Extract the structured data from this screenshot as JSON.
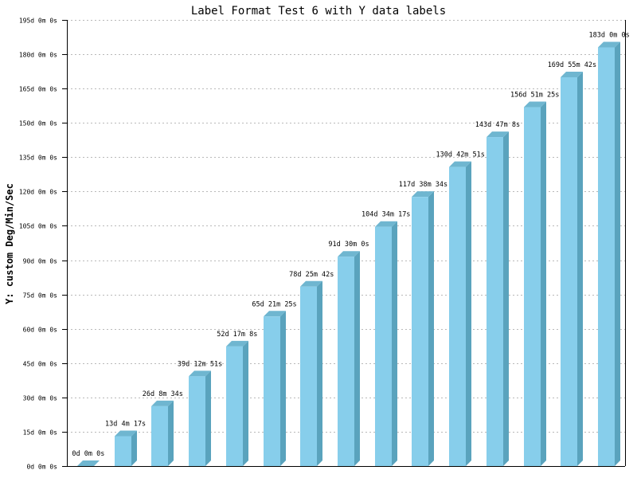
{
  "colors": {
    "bar_front": "#87ceeb",
    "bar_side": "#5aa3bd",
    "bar_top": "#6fb6d0",
    "grid": "#b9b9b9",
    "axis": "#000000"
  },
  "chart_data": {
    "type": "bar",
    "title": "Label Format Test 6 with Y data labels",
    "xlabel": "",
    "ylabel": "Y: custom Deg/Min/Sec",
    "ylim": [
      0,
      195
    ],
    "ytick_values": [
      0,
      15,
      30,
      45,
      60,
      75,
      90,
      105,
      120,
      135,
      150,
      165,
      180,
      195
    ],
    "ytick_labels": [
      "0d 0m 0s",
      "15d 0m 0s",
      "30d 0m 0s",
      "45d 0m 0s",
      "60d 0m 0s",
      "75d 0m 0s",
      "90d 0m 0s",
      "105d 0m 0s",
      "120d 0m 0s",
      "135d 0m 0s",
      "150d 0m 0s",
      "165d 0m 0s",
      "180d 0m 0s",
      "195d 0m 0s"
    ],
    "grid": true,
    "legend": "none",
    "values": [
      0,
      13.0714,
      26.1428,
      39.2142,
      52.2856,
      65.357,
      78.4284,
      91.5,
      104.5714,
      117.6428,
      130.7142,
      143.7856,
      156.857,
      169.9284,
      183
    ],
    "value_labels": [
      "0d 0m 0s",
      "13d 4m 17s",
      "26d 8m 34s",
      "39d 12m 51s",
      "52d 17m 8s",
      "65d 21m 25s",
      "78d 25m 42s",
      "91d 30m 0s",
      "104d 34m 17s",
      "117d 38m 34s",
      "130d 42m 51s",
      "143d 47m 8s",
      "156d 51m 25s",
      "169d 55m 42s",
      "183d 0m 0s"
    ]
  }
}
